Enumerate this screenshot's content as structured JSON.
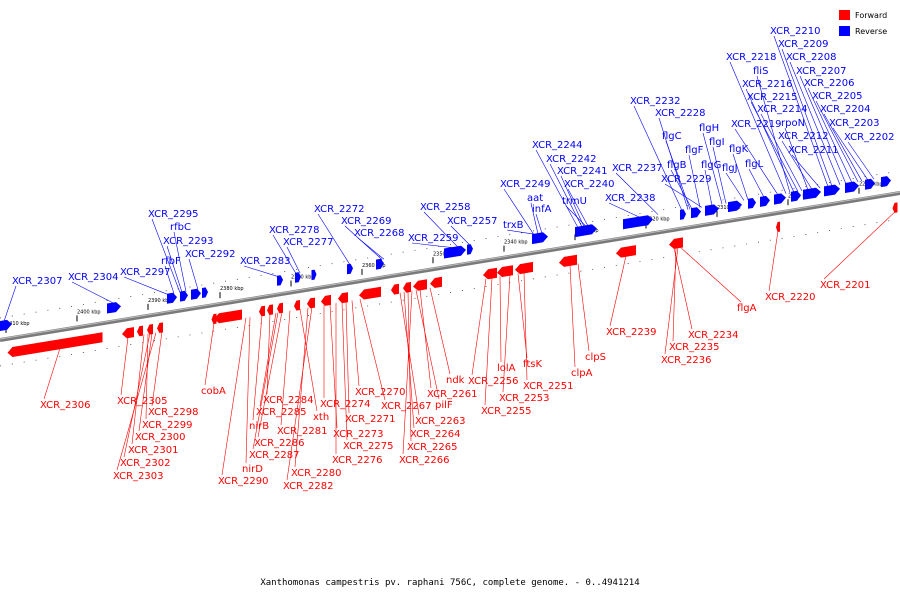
{
  "caption": "Xanthomonas campestris pv. raphani 756C, complete genome. - 0..4941214",
  "legend": {
    "forward": {
      "label": "Forward",
      "color": "#ff0000"
    },
    "reverse": {
      "label": "Reverse",
      "color": "#0000ff"
    }
  },
  "kbp_ticks": [
    "2410 kbp",
    "2400 kbp",
    "2390 kbp",
    "2380 kbp",
    "2370 kbp",
    "2360 kbp",
    "2350 kbp",
    "2340 kbp",
    "2330 kbp",
    "2320 kbp",
    "2310 kbp",
    "2300 kbp",
    "2290 kbp"
  ],
  "forward_genes": [
    "XCR_2306",
    "XCR_2305",
    "XCR_2298",
    "XCR_2299",
    "XCR_2300",
    "XCR_2301",
    "XCR_2302",
    "XCR_2303",
    "cobA",
    "nirB",
    "nirD",
    "XCR_2290",
    "XCR_2284",
    "XCR_2285",
    "XCR_2286",
    "XCR_2287",
    "XCR_2281",
    "xth",
    "XCR_2280",
    "XCR_2282",
    "XCR_2274",
    "XCR_2273",
    "XCR_2276",
    "XCR_2275",
    "XCR_2271",
    "XCR_2270",
    "XCR_2267",
    "XCR_2263",
    "XCR_2264",
    "XCR_2265",
    "XCR_2266",
    "pilF",
    "XCR_2261",
    "ndk",
    "XCR_2256",
    "XCR_2255",
    "lolA",
    "XCR_2253",
    "ftsK",
    "XCR_2251",
    "clpA",
    "clpS",
    "XCR_2239",
    "XCR_2234",
    "XCR_2235",
    "XCR_2236",
    "flgA",
    "XCR_2220",
    "XCR_2201"
  ],
  "reverse_genes": [
    "XCR_2307",
    "XCR_2304",
    "XCR_2297",
    "rfbF",
    "XCR_2292",
    "XCR_2293",
    "rfbC",
    "XCR_2295",
    "XCR_2283",
    "XCR_2277",
    "XCR_2278",
    "XCR_2272",
    "XCR_2269",
    "XCR_2268",
    "XCR_2259",
    "XCR_2258",
    "XCR_2257",
    "trxB",
    "XCR_2249",
    "aat",
    "infA",
    "XCR_2244",
    "XCR_2242",
    "XCR_2241",
    "XCR_2240",
    "trmU",
    "XCR_2238",
    "XCR_2237",
    "XCR_2232",
    "XCR_2228",
    "flgC",
    "flgB",
    "flgF",
    "XCR_2229",
    "flgG",
    "flgH",
    "flgI",
    "flgJ",
    "flgK",
    "flgL",
    "XCR_2219",
    "XCR_2218",
    "fliS",
    "XCR_2216",
    "XCR_2215",
    "XCR_2214",
    "rpoN",
    "XCR_2212",
    "XCR_2211",
    "XCR_2210",
    "XCR_2209",
    "XCR_2208",
    "XCR_2207",
    "XCR_2206",
    "XCR_2205",
    "XCR_2204",
    "XCR_2203",
    "XCR_2202"
  ]
}
